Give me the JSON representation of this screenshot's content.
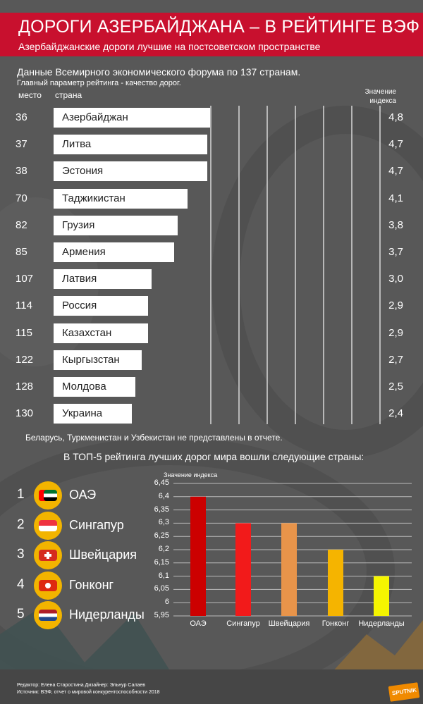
{
  "title": "ДОРОГИ АЗЕРБАЙДЖАНА – В РЕЙТИНГЕ ВЭФ",
  "subtitle": "Азербайджанские дороги лучшие на постсоветском пространстве",
  "intro": "Данные Всемирного экономического форума по 137 странам.",
  "param": "Главный параметр рейтинга - качество дорог.",
  "headers": {
    "place": "место",
    "country": "страна",
    "index": "Значение индекса"
  },
  "note": "Беларусь, Туркменистан и Узбекистан не представлены в отчете.",
  "top5_title": "В ТОП-5 рейтинга лучших дорог мира вошли следующие страны:",
  "top5": [
    {
      "rank": "1",
      "name": "ОАЭ"
    },
    {
      "rank": "2",
      "name": "Сингапур"
    },
    {
      "rank": "3",
      "name": "Швейцария"
    },
    {
      "rank": "4",
      "name": "Гонконг"
    },
    {
      "rank": "5",
      "name": "Нидерланды"
    }
  ],
  "credits": {
    "line1": "Редактор: Елена Старостина  Дизайнер: Эльнур Салаев",
    "line2": "Источник: ВЭФ, отчет о мировой конкурентоспособности 2018"
  },
  "logo_text": "SPUTNIK",
  "colors": {
    "title_bar": "#c8102e",
    "background": "#585858"
  },
  "chart_data": [
    {
      "type": "bar",
      "orientation": "horizontal",
      "categories": [
        "Азербайджан",
        "Литва",
        "Эстония",
        "Таджикистан",
        "Грузия",
        "Армения",
        "Латвия",
        "Россия",
        "Казахстан",
        "Кыргызстан",
        "Молдова",
        "Украина"
      ],
      "places": [
        "36",
        "37",
        "38",
        "70",
        "82",
        "85",
        "107",
        "114",
        "115",
        "122",
        "128",
        "130"
      ],
      "values": [
        4.8,
        4.7,
        4.7,
        4.1,
        3.8,
        3.7,
        3.0,
        2.9,
        2.9,
        2.7,
        2.5,
        2.4
      ],
      "value_labels": [
        "4,8",
        "4,7",
        "4,7",
        "4,1",
        "3,8",
        "3,7",
        "3,0",
        "2,9",
        "2,9",
        "2,7",
        "2,5",
        "2,4"
      ],
      "bar_color": "#ffffff"
    },
    {
      "type": "bar",
      "ylabel": "Значение индекса",
      "categories": [
        "ОАЭ",
        "Сингапур",
        "Швейцария",
        "Гонконг",
        "Нидерланды"
      ],
      "values": [
        6.4,
        6.3,
        6.3,
        6.2,
        6.1
      ],
      "ylim": [
        5.95,
        6.45
      ],
      "yticks": [
        "5,95",
        "6",
        "6,05",
        "6,1",
        "6,15",
        "6,2",
        "6,25",
        "6,3",
        "6,35",
        "6,4",
        "6,45"
      ],
      "grid": true,
      "colors": [
        "#cc0000",
        "#f21a1a",
        "#e8944a",
        "#f5b400",
        "#f5f500"
      ]
    }
  ]
}
